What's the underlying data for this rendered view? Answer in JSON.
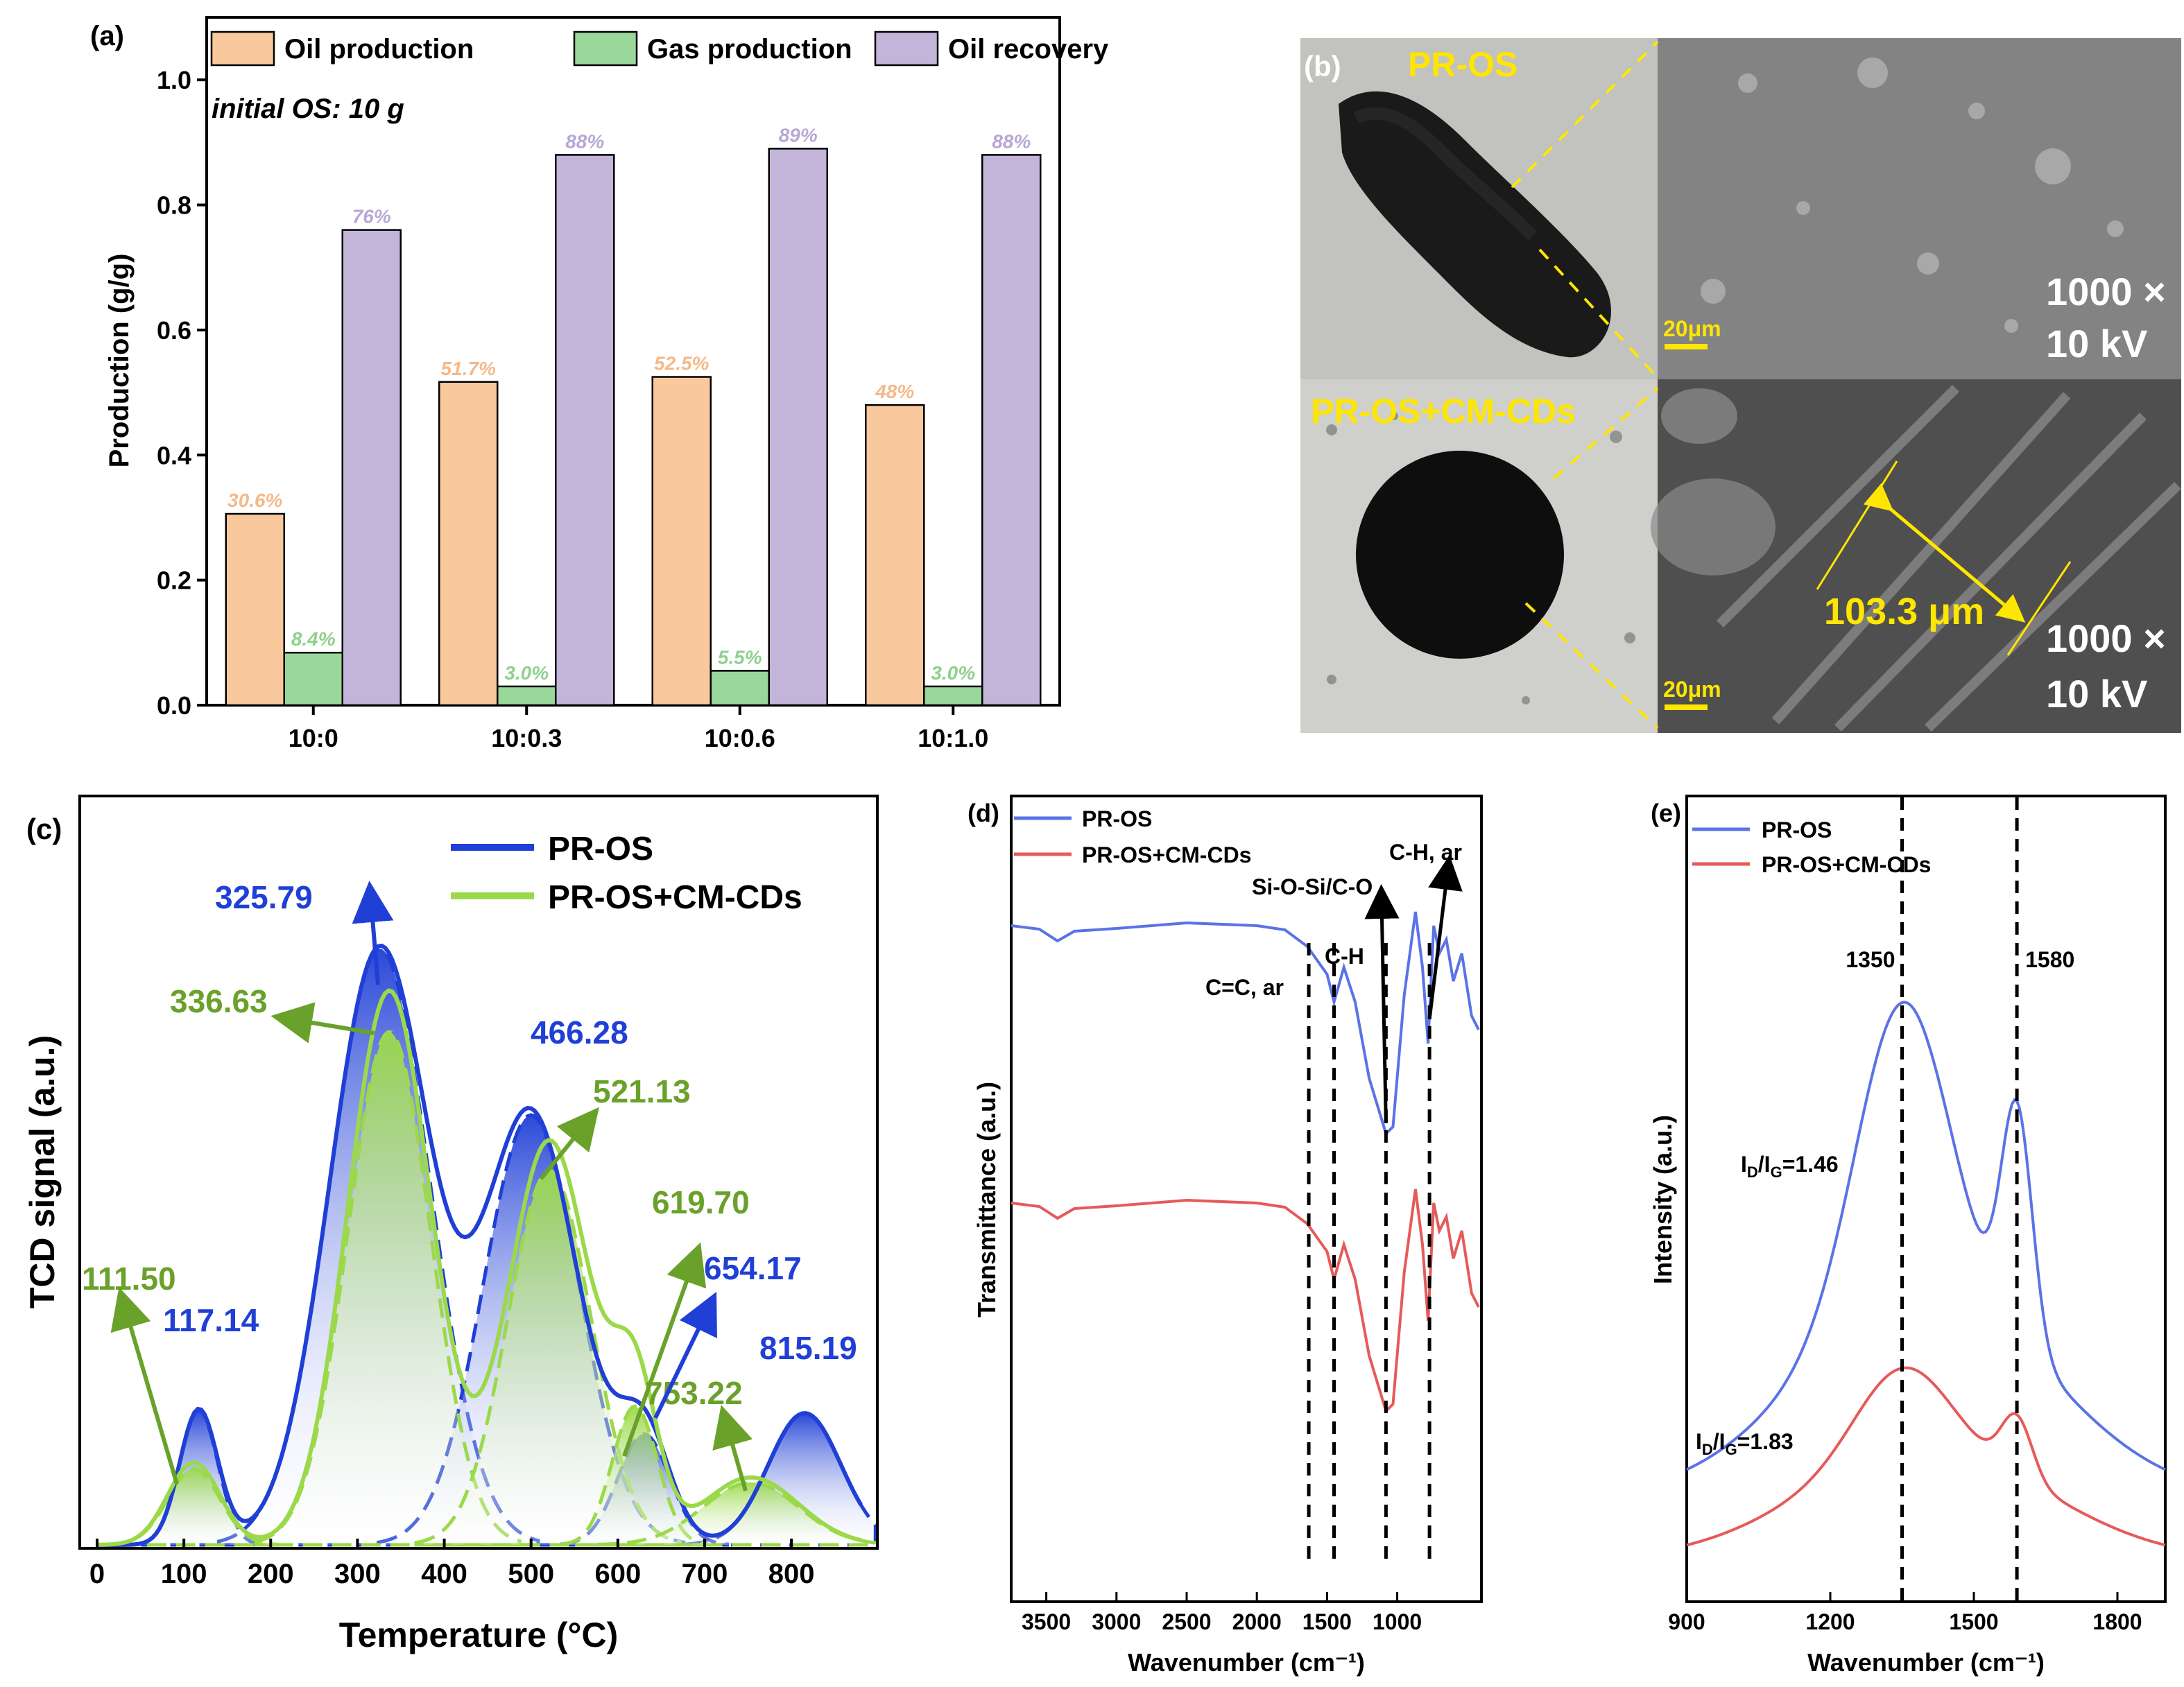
{
  "colors": {
    "oil": "#f9c89d",
    "gas": "#9ad79a",
    "recovery": "#c3b4da",
    "oil_label": "#f4b98a",
    "gas_label": "#8fd08f",
    "recovery_label": "#b7a8d6",
    "tpd_blue": "#1f3fd6",
    "tpd_green": "#9bd94a",
    "tpd_green_text": "#6aa12a",
    "ftir_blue": "#5a73e6",
    "ftir_red": "#e65a5a",
    "sem_label": "#ffe600",
    "black": "#000000"
  },
  "chart_data": [
    {
      "panel": "(a)",
      "type": "bar",
      "categories": [
        "10:0",
        "10:0.3",
        "10:0.6",
        "10:1.0"
      ],
      "series": [
        {
          "name": "Oil production",
          "values": [
            0.306,
            0.517,
            0.525,
            0.48
          ],
          "labels": [
            "30.6%",
            "51.7%",
            "52.5%",
            "48%"
          ]
        },
        {
          "name": "Gas production",
          "values": [
            0.084,
            0.03,
            0.055,
            0.03
          ],
          "labels": [
            "8.4%",
            "3.0%",
            "5.5%",
            "3.0%"
          ]
        },
        {
          "name": "Oil recovery",
          "values": [
            0.76,
            0.88,
            0.89,
            0.88
          ],
          "labels": [
            "76%",
            "88%",
            "89%",
            "88%"
          ]
        }
      ],
      "annotation": "initial OS: 10 g",
      "ylabel": "Production (g/g)",
      "ylim": [
        0.0,
        1.1
      ],
      "yticks": [
        "0.0",
        "0.2",
        "0.4",
        "0.6",
        "0.8",
        "1.0"
      ],
      "legend": "top"
    },
    {
      "panel": "(c)",
      "type": "line",
      "xlabel": "Temperature (°C)",
      "ylabel": "TCD signal (a.u.)",
      "xlim": [
        0,
        900
      ],
      "xticks": [
        "0",
        "100",
        "200",
        "300",
        "400",
        "500",
        "600",
        "700",
        "800"
      ],
      "series": [
        {
          "name": "PR-OS",
          "peaks": [
            117.14,
            325.79,
            466.28,
            654.17,
            815.19
          ],
          "peak_labels": [
            "117.14",
            "325.79",
            "466.28",
            "654.17",
            "815.19"
          ]
        },
        {
          "name": "PR-OS+CM-CDs",
          "peaks": [
            111.5,
            336.63,
            521.13,
            619.7,
            753.22
          ],
          "peak_labels": [
            "111.50",
            "336.63",
            "521.13",
            "619.70",
            "753.22"
          ]
        }
      ],
      "legend": "top-right"
    },
    {
      "panel": "(d)",
      "type": "line",
      "xlabel": "Wavenumber (cm⁻¹)",
      "ylabel": "Transmittance (a.u.)",
      "xlim": [
        3750,
        400
      ],
      "xticks": [
        "3500",
        "3000",
        "2500",
        "2000",
        "1500",
        "1000"
      ],
      "series": [
        {
          "name": "PR-OS"
        },
        {
          "name": "PR-OS+CM-CDs"
        }
      ],
      "annotations": [
        "C=C, ar",
        "C-H",
        "Si-O-Si/C-O",
        "C-H, ar"
      ],
      "legend": "top-left"
    },
    {
      "panel": "(e)",
      "type": "line",
      "xlabel": "Wavenumber (cm⁻¹)",
      "ylabel": "Intensity (a.u.)",
      "xlim": [
        900,
        1900
      ],
      "xticks": [
        "900",
        "1200",
        "1500",
        "1800"
      ],
      "series": [
        {
          "name": "PR-OS",
          "ratio": "1.46"
        },
        {
          "name": "PR-OS+CM-CDs",
          "ratio": "1.83"
        }
      ],
      "peak_labels": [
        "1350",
        "1580"
      ],
      "ratio_prefix": "I",
      "ratio_sub_d": "D",
      "ratio_slash": "/I",
      "ratio_sub_g": "G",
      "ratio_values": [
        "=1.46",
        "=1.83"
      ],
      "legend": "top-left"
    }
  ],
  "sem": {
    "panel": "(b)",
    "top_label": "PR-OS",
    "bottom_label": "PR-OS+CM-CDs",
    "scale_bar": "20μm",
    "magnification": "1000 ×",
    "voltage": "10 kV",
    "measurement": "103.3 μm"
  }
}
